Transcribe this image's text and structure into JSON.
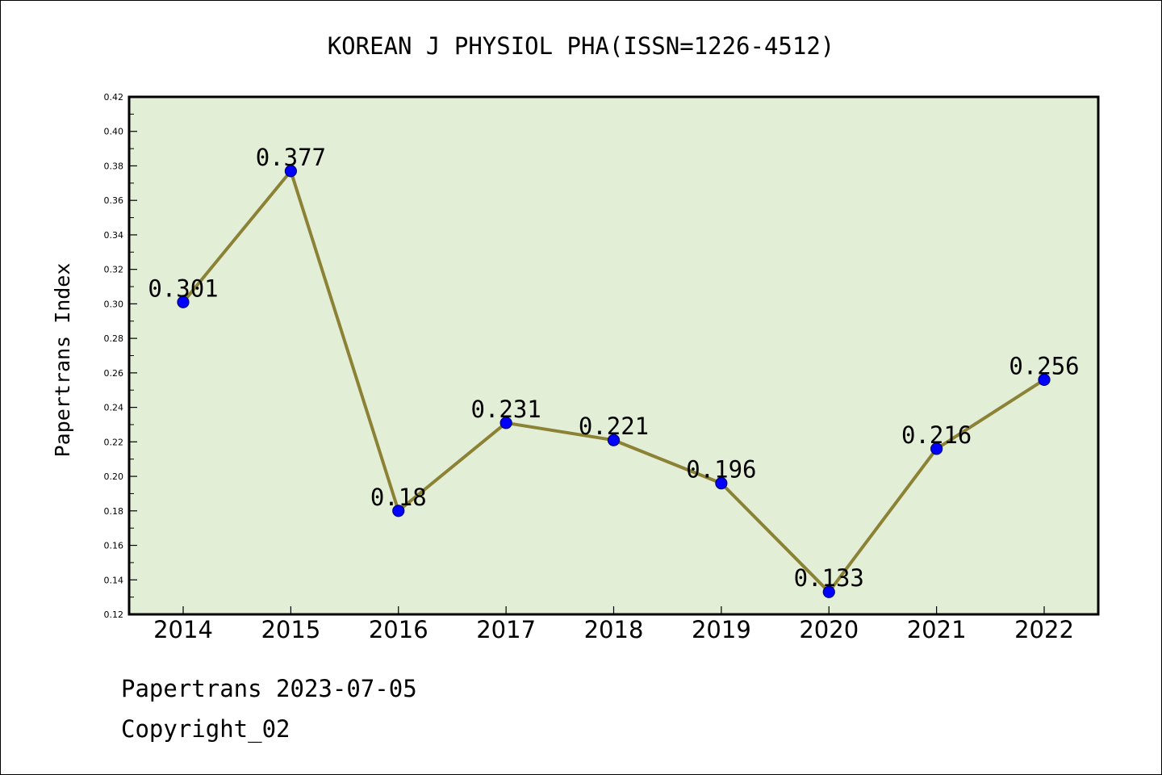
{
  "chart_data": {
    "type": "line",
    "title": "KOREAN J PHYSIOL PHA(ISSN=1226-4512)",
    "xlabel": "",
    "ylabel": "Papertrans Index",
    "categories": [
      "2014",
      "2015",
      "2016",
      "2017",
      "2018",
      "2019",
      "2020",
      "2021",
      "2022"
    ],
    "series": [
      {
        "values": [
          0.301,
          0.377,
          0.18,
          0.231,
          0.221,
          0.196,
          0.133,
          0.216,
          0.256
        ],
        "data_labels": [
          "0.301",
          "0.377",
          "0.18",
          "0.231",
          "0.221",
          "0.196",
          "0.133",
          "0.216",
          "0.256"
        ]
      }
    ],
    "ylim": [
      0.12,
      0.42
    ],
    "yticks": [
      "0.12",
      "0.14",
      "0.16",
      "0.18",
      "0.20",
      "0.22",
      "0.24",
      "0.26",
      "0.28",
      "0.30",
      "0.32",
      "0.34",
      "0.36",
      "0.38",
      "0.40",
      "0.42"
    ],
    "grid": false,
    "legend": "none",
    "colors": {
      "plot_background": "#e2efd6",
      "line": "#8b8236",
      "marker": "#0000ff",
      "marker_edge": "#00007a"
    }
  },
  "footer": {
    "date_line": "Papertrans 2023-07-05",
    "copyright": "Copyright_02"
  }
}
